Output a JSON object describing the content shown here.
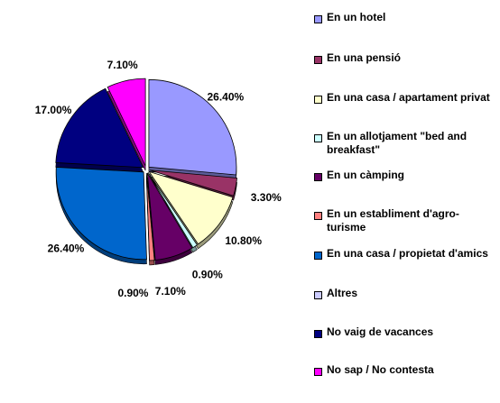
{
  "chart_data": {
    "type": "pie",
    "title": "",
    "slices": [
      {
        "label": "En un hotel",
        "value": 26.4,
        "value_label": "26.40%",
        "color": "#9999ff"
      },
      {
        "label": "En una pensió",
        "value": 3.3,
        "value_label": "3.30%",
        "color": "#993366"
      },
      {
        "label": "En una casa / apartament privat",
        "value": 10.8,
        "value_label": "10.80%",
        "color": "#ffffcc"
      },
      {
        "label": "En un allotjament \"bed and breakfast\"",
        "value": 0.9,
        "value_label": "0.90%",
        "color": "#ccffff"
      },
      {
        "label": "En un càmping",
        "value": 7.1,
        "value_label": "7.10%",
        "color": "#660066"
      },
      {
        "label": "En un establiment d'agro-turisme",
        "value": 0.9,
        "value_label": "0.90%",
        "color": "#ff8080"
      },
      {
        "label": "En una casa / propietat d'amics",
        "value": 26.4,
        "value_label": "26.40%",
        "color": "#0066cc"
      },
      {
        "label": "Altres",
        "value": 0.0,
        "value_label": "",
        "color": "#ccccff"
      },
      {
        "label": "No vaig de vacances",
        "value": 17.0,
        "value_label": "17.00%",
        "color": "#000080"
      },
      {
        "label": "No sap / No contesta",
        "value": 7.1,
        "value_label": "7.10%",
        "color": "#ff00ff"
      }
    ],
    "legend_position": "right",
    "exploded": true
  },
  "legend": {
    "items": [
      {
        "label": "En un hotel",
        "color": "#9999ff"
      },
      {
        "label": "En una pensió",
        "color": "#993366"
      },
      {
        "label": "En una casa / apartament privat",
        "color": "#ffffcc"
      },
      {
        "label": "En un allotjament \"bed and breakfast\"",
        "color": "#ccffff"
      },
      {
        "label": "En un càmping",
        "color": "#660066"
      },
      {
        "label": "En un establiment d'agro-turisme",
        "color": "#ff8080"
      },
      {
        "label": "En una casa / propietat d'amics",
        "color": "#0066cc"
      },
      {
        "label": "Altres",
        "color": "#ccccff"
      },
      {
        "label": "No vaig de vacances",
        "color": "#000080"
      },
      {
        "label": "No sap / No contesta",
        "color": "#ff00ff"
      }
    ]
  }
}
